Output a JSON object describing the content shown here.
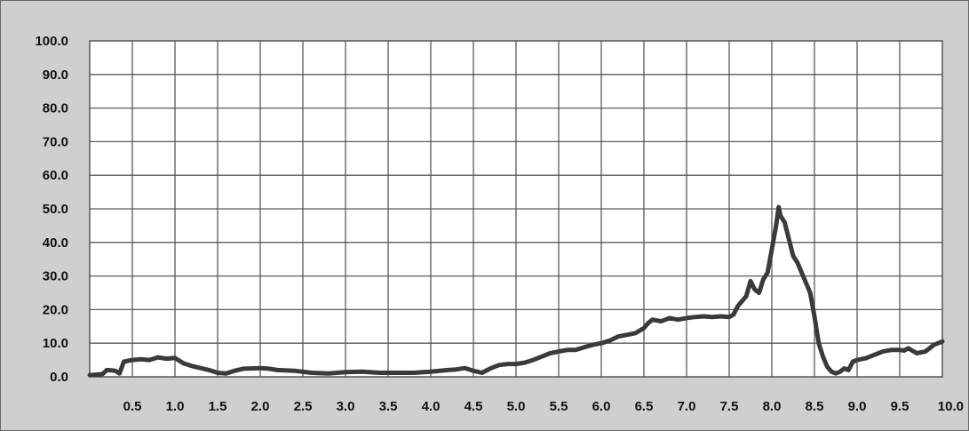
{
  "chart_data": {
    "type": "line",
    "title": "",
    "xlabel": "",
    "ylabel": "",
    "grid": true,
    "legend": "none",
    "xlim": [
      0,
      10
    ],
    "ylim": [
      0,
      100
    ],
    "x_ticks": [
      0.5,
      1.0,
      1.5,
      2.0,
      2.5,
      3.0,
      3.5,
      4.0,
      4.5,
      5.0,
      5.5,
      6.0,
      6.5,
      7.0,
      7.5,
      8.0,
      8.5,
      9.0,
      9.5,
      10.0
    ],
    "x_tick_labels": [
      "0.5",
      "1.0",
      "1.5",
      "2.0",
      "2.5",
      "3.0",
      "3.5",
      "4.0",
      "4.5",
      "5.0",
      "5.5",
      "6.0",
      "6.5",
      "7.0",
      "7.5",
      "8.0",
      "8.5",
      "9.0",
      "9.5",
      "10.0"
    ],
    "y_ticks": [
      0,
      10,
      20,
      30,
      40,
      50,
      60,
      70,
      80,
      90,
      100
    ],
    "y_tick_labels": [
      "0.0",
      "10.0",
      "20.0",
      "30.0",
      "40.0",
      "50.0",
      "60.0",
      "70.0",
      "80.0",
      "90.0",
      "100.0"
    ],
    "series": [
      {
        "color": "#3a3a3a",
        "x": [
          0.0,
          0.15,
          0.2,
          0.3,
          0.35,
          0.4,
          0.5,
          0.6,
          0.7,
          0.8,
          0.9,
          1.0,
          1.1,
          1.2,
          1.3,
          1.4,
          1.5,
          1.6,
          1.7,
          1.8,
          1.9,
          2.0,
          2.1,
          2.2,
          2.4,
          2.6,
          2.8,
          3.0,
          3.2,
          3.4,
          3.6,
          3.8,
          4.0,
          4.2,
          4.3,
          4.4,
          4.5,
          4.6,
          4.7,
          4.8,
          4.9,
          5.0,
          5.1,
          5.2,
          5.3,
          5.4,
          5.5,
          5.6,
          5.7,
          5.8,
          5.9,
          6.0,
          6.1,
          6.2,
          6.3,
          6.4,
          6.5,
          6.55,
          6.6,
          6.7,
          6.8,
          6.9,
          7.0,
          7.1,
          7.2,
          7.3,
          7.4,
          7.5,
          7.55,
          7.6,
          7.7,
          7.75,
          7.8,
          7.85,
          7.9,
          7.95,
          8.0,
          8.05,
          8.08,
          8.1,
          8.15,
          8.2,
          8.25,
          8.3,
          8.35,
          8.4,
          8.45,
          8.5,
          8.55,
          8.6,
          8.65,
          8.7,
          8.75,
          8.8,
          8.85,
          8.9,
          8.95,
          9.0,
          9.1,
          9.2,
          9.3,
          9.4,
          9.5,
          9.55,
          9.6,
          9.7,
          9.8,
          9.9,
          10.0
        ],
        "y": [
          0.5,
          0.8,
          2.0,
          1.8,
          1.0,
          4.5,
          5.0,
          5.2,
          5.0,
          5.8,
          5.4,
          5.6,
          4.0,
          3.2,
          2.6,
          2.0,
          1.2,
          1.0,
          1.8,
          2.4,
          2.5,
          2.6,
          2.4,
          2.0,
          1.8,
          1.2,
          1.0,
          1.4,
          1.5,
          1.2,
          1.2,
          1.2,
          1.5,
          2.0,
          2.2,
          2.6,
          1.8,
          1.2,
          2.5,
          3.5,
          3.8,
          3.8,
          4.2,
          5.0,
          6.0,
          7.0,
          7.5,
          8.0,
          8.0,
          8.8,
          9.5,
          10.0,
          10.8,
          12.0,
          12.5,
          13.0,
          14.5,
          16.0,
          17.0,
          16.5,
          17.5,
          17.0,
          17.5,
          17.8,
          18.0,
          17.8,
          18.0,
          17.8,
          18.5,
          21.0,
          24.0,
          28.5,
          26.0,
          25.0,
          29.0,
          31.0,
          38.0,
          45.0,
          50.5,
          48.0,
          46.0,
          41.0,
          36.0,
          34.0,
          31.0,
          28.0,
          25.0,
          18.0,
          10.0,
          6.0,
          3.0,
          1.5,
          1.0,
          1.5,
          2.5,
          2.0,
          4.5,
          5.0,
          5.5,
          6.5,
          7.5,
          8.0,
          8.0,
          7.8,
          8.5,
          7.0,
          7.5,
          9.5,
          10.5
        ]
      }
    ]
  }
}
